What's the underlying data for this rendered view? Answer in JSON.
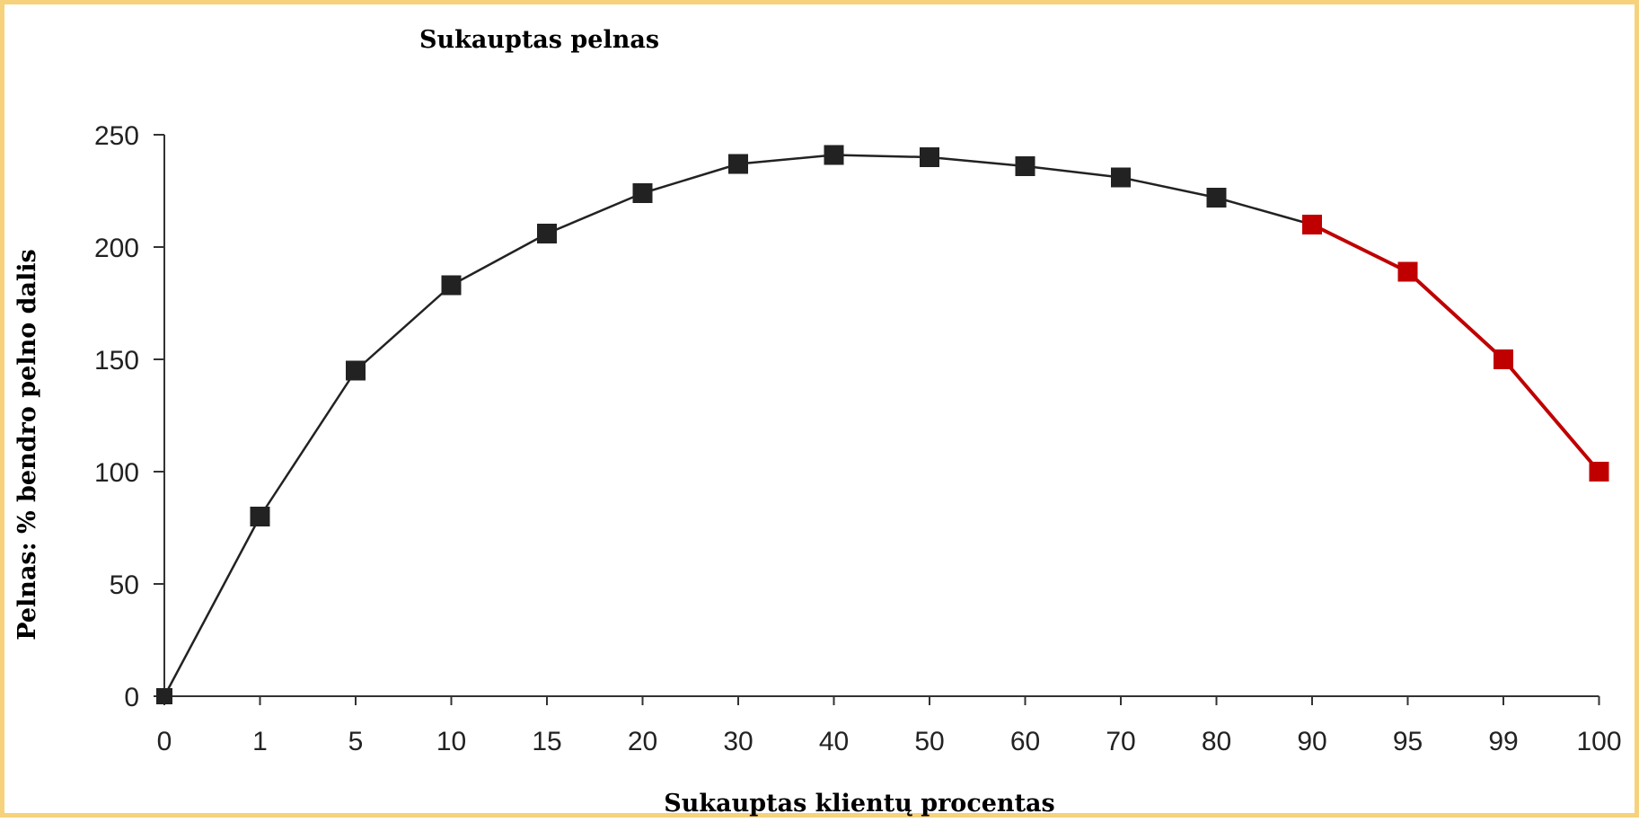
{
  "chart_data": {
    "type": "line",
    "title": "Sukauptas pelnas",
    "xlabel": "Sukauptas klientų procentas",
    "ylabel": "Pelnas: % bendro pelno dalis",
    "categories": [
      "0",
      "1",
      "5",
      "10",
      "15",
      "20",
      "30",
      "40",
      "50",
      "60",
      "70",
      "80",
      "90",
      "95",
      "99",
      "100"
    ],
    "values": [
      0,
      80,
      145,
      183,
      206,
      224,
      237,
      241,
      240,
      236,
      231,
      222,
      210,
      189,
      150,
      100
    ],
    "highlight_from_index": 12,
    "colors": {
      "series": "#222222",
      "highlight": "#c00000",
      "border": "#f6d27c"
    },
    "y_ticks": [
      "0",
      "50",
      "100",
      "150",
      "200",
      "250"
    ],
    "ylim": [
      0,
      250
    ],
    "grid": false,
    "legend": "none"
  }
}
